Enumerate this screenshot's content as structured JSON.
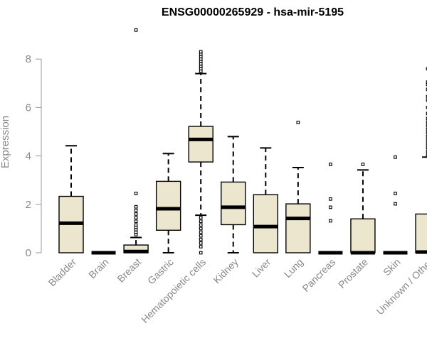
{
  "chart_data": {
    "type": "boxplot",
    "title": "ENSG00000265929 - hsa-mir-5195",
    "xlabel": "",
    "ylabel": "Expression",
    "ylim": [
      0,
      9.2
    ],
    "yticks": [
      0,
      2,
      4,
      6,
      8
    ],
    "box_fill": "#ede6cf",
    "categories": [
      "Bladder",
      "Brain",
      "Breast",
      "Gastric",
      "Hematopoietic cells",
      "Kidney",
      "Liver",
      "Lung",
      "Pancreas",
      "Prostate",
      "Skin",
      "Unknown / Other"
    ],
    "boxes": [
      {
        "category": "Bladder",
        "min": 0,
        "q1": 0,
        "median": 1.22,
        "q3": 2.33,
        "max": 4.42,
        "outliers": []
      },
      {
        "category": "Brain",
        "min": 0,
        "q1": 0,
        "median": 0,
        "q3": 0,
        "max": 0,
        "outliers": []
      },
      {
        "category": "Breast",
        "min": 0,
        "q1": 0,
        "median": 0.05,
        "q3": 0.32,
        "max": 0.63,
        "outliers": [
          0.75,
          0.85,
          0.95,
          1.05,
          1.15,
          1.3,
          1.45,
          1.6,
          1.75,
          1.9,
          2.45,
          9.2
        ]
      },
      {
        "category": "Gastric",
        "min": 0,
        "q1": 0.93,
        "median": 1.82,
        "q3": 2.95,
        "max": 4.1,
        "outliers": []
      },
      {
        "category": "Hematopoietic cells",
        "min": 1.55,
        "q1": 3.75,
        "median": 4.68,
        "q3": 5.22,
        "max": 7.4,
        "outliers": [
          0,
          0.25,
          0.4,
          0.55,
          0.7,
          0.85,
          1.0,
          1.15,
          1.3,
          1.45,
          7.5,
          7.6,
          7.7,
          7.8,
          7.9,
          8.0,
          8.1,
          8.2,
          8.3
        ]
      },
      {
        "category": "Kidney",
        "min": 0,
        "q1": 1.16,
        "median": 1.88,
        "q3": 2.92,
        "max": 4.8,
        "outliers": []
      },
      {
        "category": "Liver",
        "min": 0,
        "q1": 0,
        "median": 1.08,
        "q3": 2.4,
        "max": 4.33,
        "outliers": []
      },
      {
        "category": "Lung",
        "min": 0,
        "q1": 0,
        "median": 1.42,
        "q3": 2.02,
        "max": 3.52,
        "outliers": [
          5.38
        ]
      },
      {
        "category": "Pancreas",
        "min": 0,
        "q1": 0,
        "median": 0,
        "q3": 0,
        "max": 0,
        "outliers": [
          1.32,
          1.88,
          2.22,
          3.65
        ]
      },
      {
        "category": "Prostate",
        "min": 0,
        "q1": 0,
        "median": 0,
        "q3": 1.4,
        "max": 3.42,
        "outliers": [
          3.65
        ]
      },
      {
        "category": "Skin",
        "min": 0,
        "q1": 0,
        "median": 0,
        "q3": 0,
        "max": 0,
        "outliers": [
          2.02,
          2.45,
          3.95
        ]
      },
      {
        "category": "Unknown / Other",
        "min": 0,
        "q1": 0,
        "median": 0.03,
        "q3": 1.6,
        "max": 3.95,
        "outliers": [
          4.05,
          4.2,
          4.35,
          4.5,
          4.65,
          4.8,
          4.95,
          5.1,
          5.25,
          5.4,
          5.55,
          5.75,
          6.0,
          6.3,
          6.45,
          6.75,
          6.95,
          7.05,
          7.6
        ]
      }
    ]
  }
}
